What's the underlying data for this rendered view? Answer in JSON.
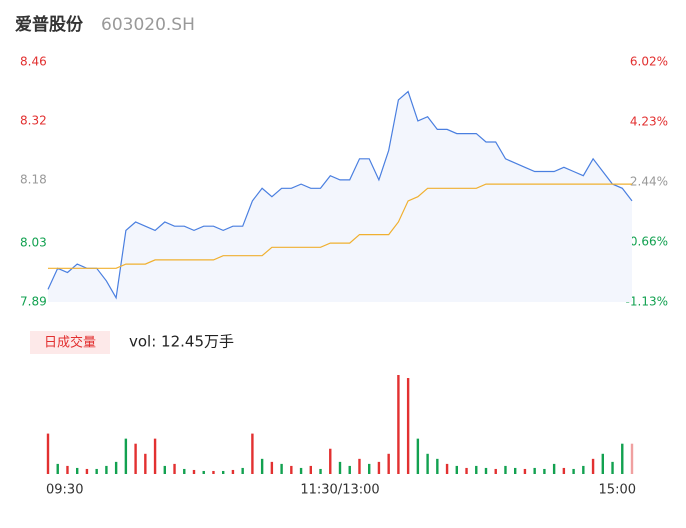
{
  "chart_data": {
    "type": "intraday",
    "title": "爱普股份",
    "subtitle": "603020.SH",
    "xlim": [
      0,
      240
    ],
    "xticks": [
      {
        "value": 0,
        "label": "09:30"
      },
      {
        "value": 120,
        "label": "11:30/13:00"
      },
      {
        "value": 240,
        "label": "15:00"
      }
    ],
    "ylim": [
      7.89,
      8.46
    ],
    "yticks": [
      7.89,
      8.03,
      8.18,
      8.32,
      8.46
    ],
    "ytick_colors": [
      "#12a150",
      "#12a150",
      "#999999",
      "#e23030",
      "#e23030"
    ],
    "y2lim": [
      -1.13,
      6.02
    ],
    "y2ticks": [
      {
        "value": -1.13,
        "label": "-1.13%"
      },
      {
        "value": 0.66,
        "label": "0.66%"
      },
      {
        "value": 2.44,
        "label": "2.44%"
      },
      {
        "value": 4.23,
        "label": "4.23%"
      },
      {
        "value": 6.02,
        "label": "6.02%"
      }
    ],
    "y2tick_colors": [
      "#12a150",
      "#12a150",
      "#999999",
      "#e23030",
      "#e23030"
    ],
    "x": [
      0,
      4,
      8,
      12,
      16,
      20,
      24,
      28,
      32,
      36,
      40,
      44,
      48,
      52,
      56,
      60,
      64,
      68,
      72,
      76,
      80,
      84,
      88,
      92,
      96,
      100,
      104,
      108,
      112,
      116,
      120,
      124,
      128,
      132,
      136,
      140,
      144,
      148,
      152,
      156,
      160,
      164,
      168,
      172,
      176,
      180,
      184,
      188,
      192,
      196,
      200,
      204,
      208,
      212,
      216,
      220,
      224,
      228,
      232,
      236,
      240
    ],
    "series": [
      {
        "name": "price",
        "color": "#4a7fe0",
        "fill": "#f3f6fd",
        "values": [
          7.92,
          7.97,
          7.96,
          7.98,
          7.97,
          7.97,
          7.94,
          7.9,
          8.06,
          8.08,
          8.07,
          8.06,
          8.08,
          8.07,
          8.07,
          8.06,
          8.07,
          8.07,
          8.06,
          8.07,
          8.07,
          8.13,
          8.16,
          8.14,
          8.16,
          8.16,
          8.17,
          8.16,
          8.16,
          8.19,
          8.18,
          8.18,
          8.23,
          8.23,
          8.18,
          8.25,
          8.37,
          8.39,
          8.32,
          8.33,
          8.3,
          8.3,
          8.29,
          8.29,
          8.29,
          8.27,
          8.27,
          8.23,
          8.22,
          8.21,
          8.2,
          8.2,
          8.2,
          8.21,
          8.2,
          8.19,
          8.23,
          8.2,
          8.17,
          8.16,
          8.13
        ]
      },
      {
        "name": "average",
        "color": "#f0b030",
        "values": [
          7.97,
          7.97,
          7.97,
          7.97,
          7.97,
          7.97,
          7.97,
          7.97,
          7.98,
          7.98,
          7.98,
          7.99,
          7.99,
          7.99,
          7.99,
          7.99,
          7.99,
          7.99,
          8.0,
          8.0,
          8.0,
          8.0,
          8.0,
          8.02,
          8.02,
          8.02,
          8.02,
          8.02,
          8.02,
          8.03,
          8.03,
          8.03,
          8.05,
          8.05,
          8.05,
          8.05,
          8.08,
          8.13,
          8.14,
          8.16,
          8.16,
          8.16,
          8.16,
          8.16,
          8.16,
          8.17,
          8.17,
          8.17,
          8.17,
          8.17,
          8.17,
          8.17,
          8.17,
          8.17,
          8.17,
          8.17,
          8.17,
          8.17,
          8.17,
          8.17,
          8.17
        ]
      }
    ],
    "volume_tag": "日成交量",
    "volume_text": "vol: 12.45万手",
    "volume": [
      40,
      10,
      8,
      6,
      5,
      5,
      8,
      12,
      35,
      30,
      20,
      35,
      8,
      10,
      5,
      4,
      3,
      3,
      3,
      4,
      6,
      40,
      15,
      12,
      10,
      8,
      6,
      8,
      5,
      25,
      12,
      8,
      15,
      10,
      12,
      20,
      98,
      95,
      35,
      20,
      15,
      10,
      8,
      6,
      8,
      6,
      5,
      8,
      6,
      5,
      6,
      5,
      10,
      6,
      5,
      8,
      15,
      20,
      12,
      30,
      30
    ],
    "volume_colors": [
      "#e23030",
      "#12a150",
      "#e23030",
      "#12a150",
      "#e23030",
      "#12a150",
      "#12a150",
      "#12a150",
      "#12a150",
      "#e23030",
      "#e23030",
      "#e23030",
      "#12a150",
      "#e23030",
      "#12a150",
      "#e23030",
      "#12a150",
      "#e23030",
      "#12a150",
      "#e23030",
      "#12a150",
      "#e23030",
      "#12a150",
      "#e23030",
      "#12a150",
      "#e23030",
      "#12a150",
      "#e23030",
      "#12a150",
      "#e23030",
      "#12a150",
      "#12a150",
      "#e23030",
      "#12a150",
      "#e23030",
      "#e23030",
      "#e23030",
      "#e23030",
      "#12a150",
      "#12a150",
      "#12a150",
      "#e23030",
      "#12a150",
      "#e23030",
      "#12a150",
      "#12a150",
      "#e23030",
      "#12a150",
      "#12a150",
      "#e23030",
      "#12a150",
      "#12a150",
      "#12a150",
      "#e23030",
      "#12a150",
      "#12a150",
      "#e23030",
      "#12a150",
      "#12a150",
      "#12a150",
      "#f0a0a0"
    ]
  }
}
